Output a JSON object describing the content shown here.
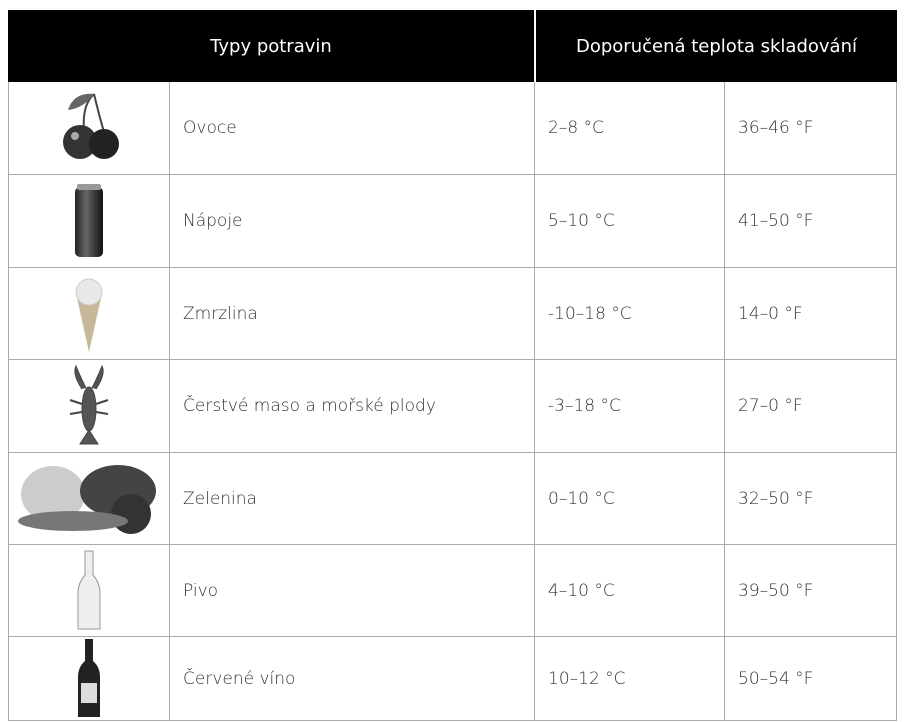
{
  "header": [
    "Typy potravin",
    "Doporučená teplota skladování"
  ],
  "rows": [
    {
      "food": "Ovoce",
      "celsius": "2–8 °C",
      "fahrenheit": "36–46 °F"
    },
    {
      "food": "Nápoje",
      "celsius": "5–10 °C",
      "fahrenheit": "41–50 °F"
    },
    {
      "food": "Zmrzlina",
      "celsius": "-10–18 °C",
      "fahrenheit": "14–0 °F"
    },
    {
      "food": "Čerstvé maso a mořské plody",
      "celsius": "-3–18 °C",
      "fahrenheit": "27–0 °F"
    },
    {
      "food": "Zelenina",
      "celsius": "0–10 °C",
      "fahrenheit": "32–50 °F"
    },
    {
      "food": "Pivo",
      "celsius": "4–10 °C",
      "fahrenheit": "39–50 °F"
    },
    {
      "food": "Červené víno",
      "celsius": "10–12 °C",
      "fahrenheit": "50–54 °F"
    }
  ]
}
